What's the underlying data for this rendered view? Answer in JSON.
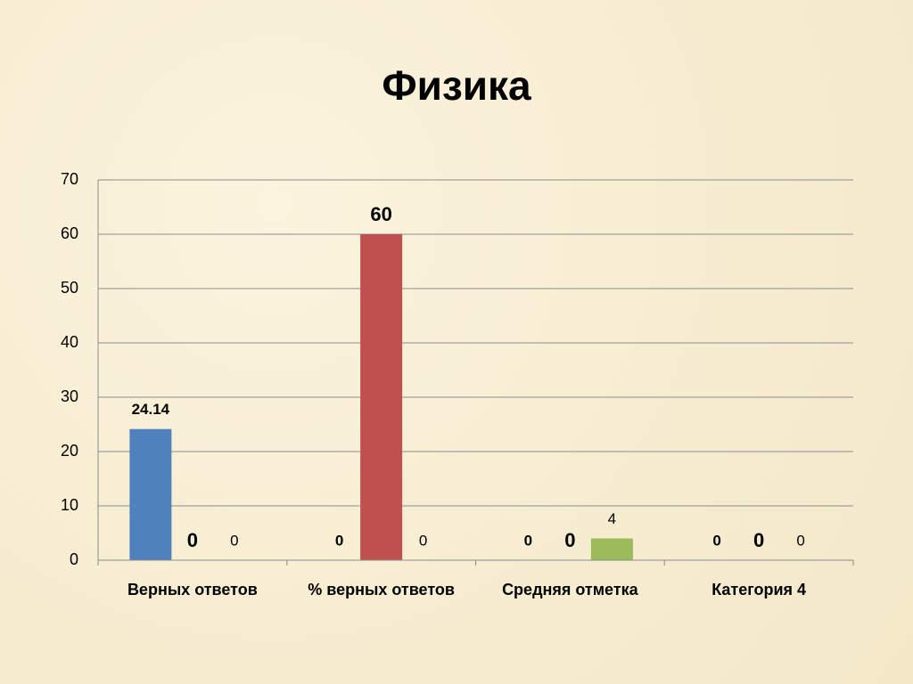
{
  "chart_data": {
    "type": "bar",
    "title": "Физика",
    "categories": [
      "Верных ответов",
      "% верных ответов",
      "Средняя отметка",
      "Категория 4"
    ],
    "series": [
      {
        "color": "#4f81bd",
        "values": [
          24.14,
          0,
          0,
          0
        ]
      },
      {
        "color": "#c0504d",
        "values": [
          0,
          60,
          0,
          0
        ]
      },
      {
        "color": "#9bbb59",
        "values": [
          0,
          0,
          4,
          0
        ]
      }
    ],
    "ylim": [
      0,
      70
    ],
    "yticks": [
      0,
      10,
      20,
      30,
      40,
      50,
      60,
      70
    ],
    "grid": true
  }
}
